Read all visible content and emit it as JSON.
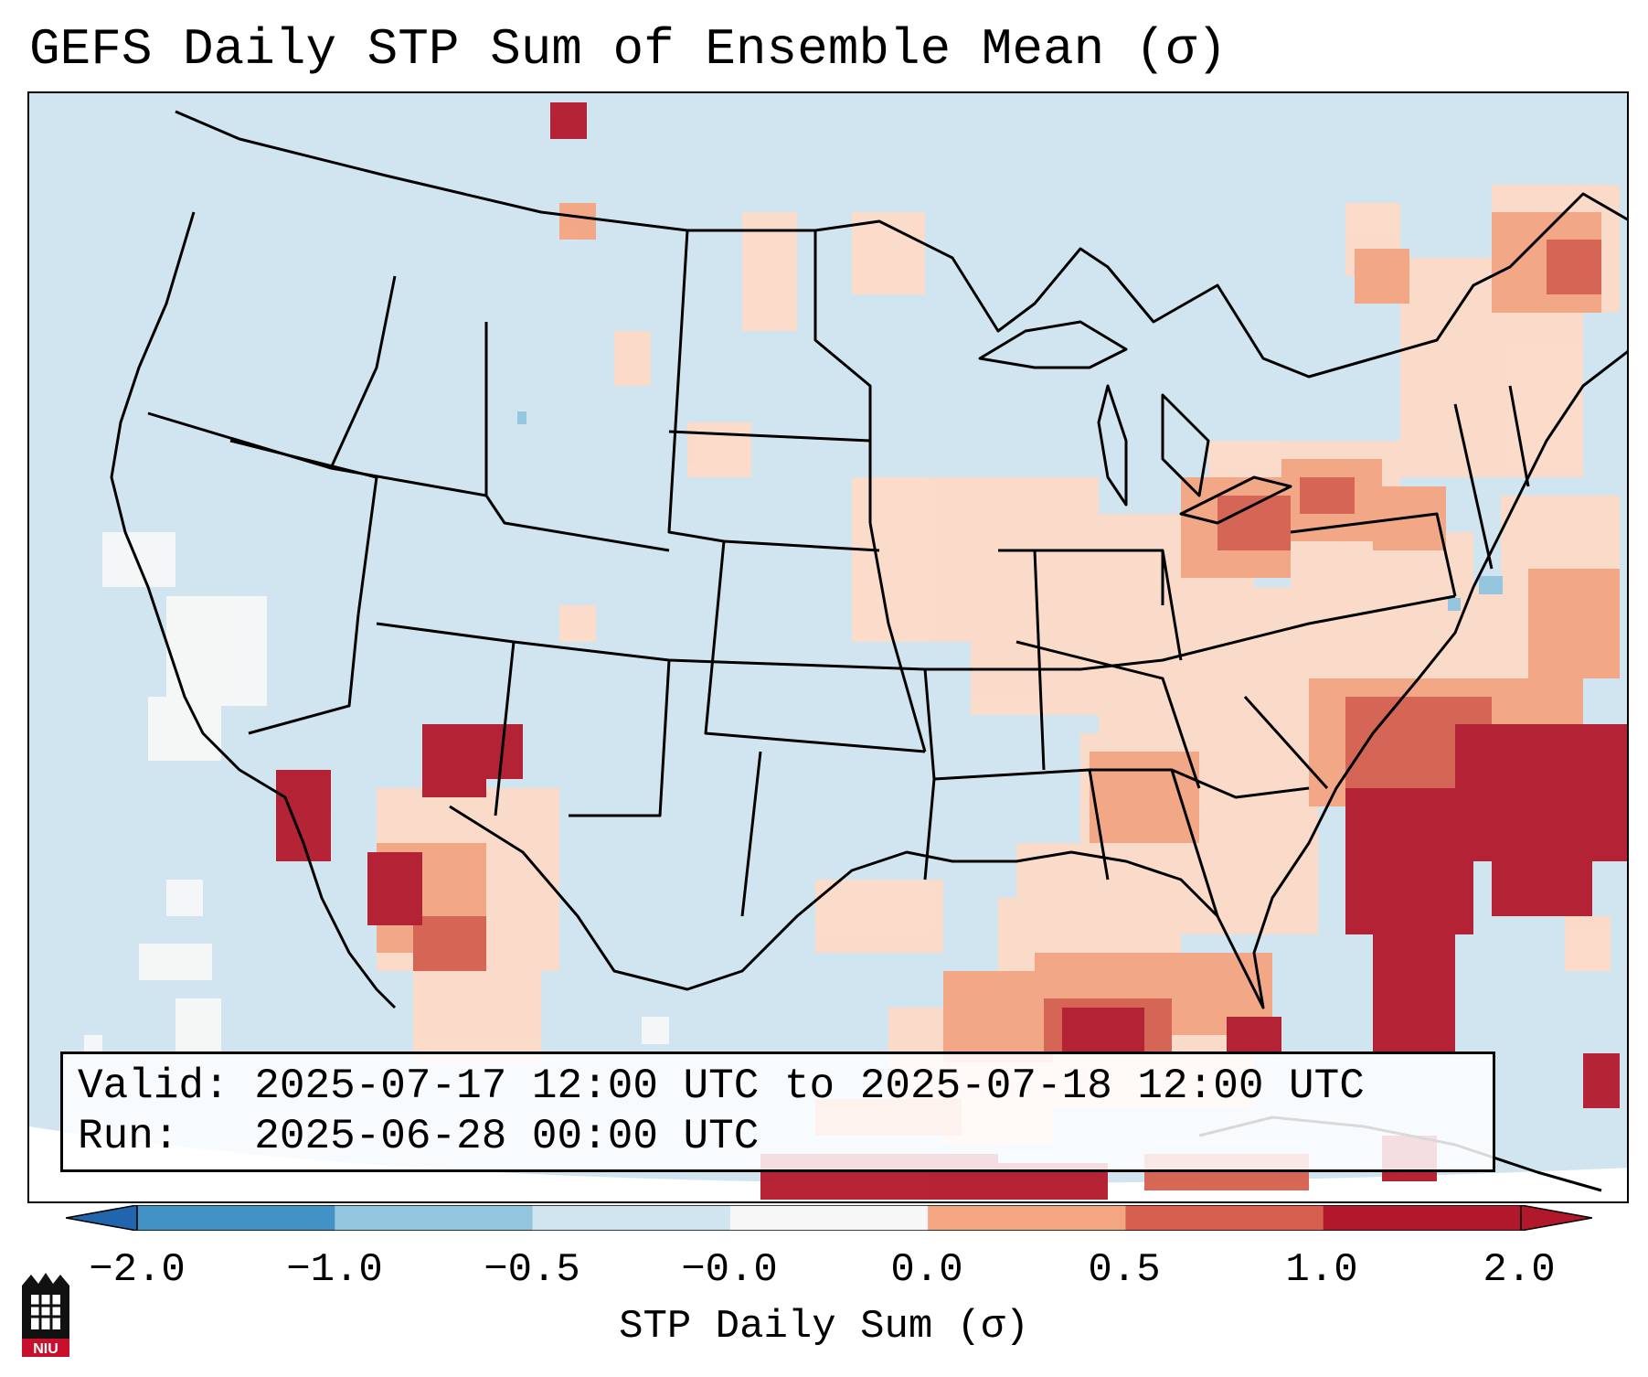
{
  "title": "GEFS Daily STP Sum of Ensemble Mean (σ)",
  "info": {
    "valid_label": "Valid:",
    "valid_value": "2025-07-17 12:00 UTC to 2025-07-18 12:00 UTC",
    "run_label": "Run:",
    "run_value": "2025-06-28 00:00 UTC"
  },
  "colorbar": {
    "label": "STP Daily Sum (σ)",
    "ticks": [
      "−2.0",
      "−1.0",
      "−0.5",
      "−0.0",
      "0.0",
      "0.5",
      "1.0",
      "2.0"
    ],
    "colors": [
      "#4292c6",
      "#92c5de",
      "#d1e5f0",
      "#f7f7f7",
      "#fddbc7",
      "#f4a582",
      "#d6604d",
      "#b2182b"
    ],
    "extend_low_color": "#2166ac",
    "extend_high_color": "#b2182b"
  },
  "map": {
    "background_color": "#d1e5f0",
    "outside_color": "#ffffff",
    "border_color": "#000000"
  },
  "logo": {
    "text": "NIU"
  }
}
